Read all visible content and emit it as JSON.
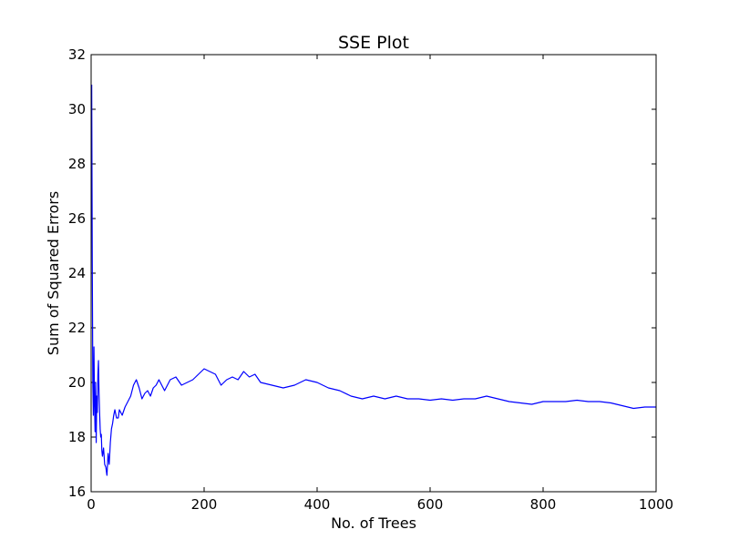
{
  "chart_data": {
    "type": "line",
    "title": "SSE Plot",
    "xlabel": "No. of Trees",
    "ylabel": "Sum of Squared Errors",
    "xlim": [
      0,
      1000
    ],
    "ylim": [
      16,
      32
    ],
    "xticks": [
      0,
      200,
      400,
      600,
      800,
      1000
    ],
    "yticks": [
      16,
      18,
      20,
      22,
      24,
      26,
      28,
      30,
      32
    ],
    "grid": false,
    "legend": "none",
    "series": [
      {
        "color": "#0000ff",
        "x": [
          1,
          2,
          3,
          4,
          5,
          6,
          7,
          8,
          9,
          10,
          11,
          12,
          13,
          14,
          15,
          16,
          17,
          18,
          19,
          20,
          22,
          24,
          26,
          28,
          30,
          32,
          34,
          36,
          38,
          40,
          42,
          45,
          48,
          50,
          55,
          60,
          65,
          70,
          75,
          80,
          85,
          90,
          95,
          100,
          105,
          110,
          115,
          120,
          130,
          140,
          150,
          160,
          170,
          180,
          190,
          200,
          210,
          220,
          230,
          240,
          250,
          260,
          270,
          280,
          290,
          300,
          320,
          340,
          360,
          380,
          400,
          420,
          440,
          460,
          480,
          500,
          520,
          540,
          560,
          580,
          600,
          620,
          640,
          660,
          680,
          700,
          720,
          740,
          760,
          780,
          800,
          820,
          840,
          860,
          880,
          900,
          920,
          940,
          960,
          980,
          1000
        ],
        "y": [
          30.9,
          24.5,
          20.0,
          18.8,
          21.3,
          19.2,
          18.2,
          20.0,
          17.8,
          19.5,
          18.9,
          20.3,
          20.8,
          19.6,
          18.9,
          18.3,
          18.0,
          18.1,
          17.5,
          17.3,
          17.6,
          17.0,
          16.9,
          16.6,
          17.4,
          17.0,
          17.8,
          18.3,
          18.5,
          18.8,
          19.0,
          18.7,
          18.7,
          19.0,
          18.8,
          19.1,
          19.3,
          19.5,
          19.9,
          20.1,
          19.8,
          19.4,
          19.6,
          19.7,
          19.5,
          19.8,
          19.9,
          20.1,
          19.7,
          20.1,
          20.2,
          19.9,
          20.0,
          20.1,
          20.3,
          20.5,
          20.4,
          20.3,
          19.9,
          20.1,
          20.2,
          20.1,
          20.4,
          20.2,
          20.3,
          20.0,
          19.9,
          19.8,
          19.9,
          20.1,
          20.0,
          19.8,
          19.7,
          19.5,
          19.4,
          19.5,
          19.4,
          19.5,
          19.4,
          19.4,
          19.35,
          19.4,
          19.35,
          19.4,
          19.4,
          19.5,
          19.4,
          19.3,
          19.25,
          19.2,
          19.3,
          19.3,
          19.3,
          19.35,
          19.3,
          19.3,
          19.25,
          19.15,
          19.05,
          19.1,
          19.1
        ]
      }
    ]
  }
}
